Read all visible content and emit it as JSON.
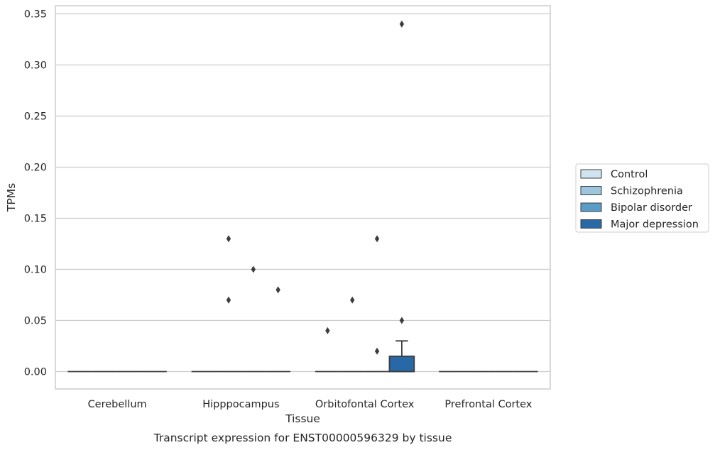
{
  "chart_data": {
    "type": "box",
    "title": "",
    "caption": "Transcript expression for ENST00000596329 by tissue",
    "xlabel": "Tissue",
    "ylabel": "TPMs",
    "ylim": [
      -0.017,
      0.358
    ],
    "yticks": [
      "0.00",
      "0.05",
      "0.10",
      "0.15",
      "0.20",
      "0.25",
      "0.30",
      "0.35"
    ],
    "categories": [
      "Cerebellum",
      "Hipppocampus",
      "Orbitofontal Cortex",
      "Prefrontal Cortex"
    ],
    "grid": true,
    "legend_position": "right",
    "series": [
      {
        "name": "Control",
        "color": "#d1e2f0",
        "boxes": [
          {
            "category": "Cerebellum",
            "q1": 0,
            "median": 0,
            "q3": 0,
            "whisker_low": 0,
            "whisker_high": 0,
            "outliers": []
          },
          {
            "category": "Hipppocampus",
            "q1": 0,
            "median": 0,
            "q3": 0,
            "whisker_low": 0,
            "whisker_high": 0,
            "outliers": []
          },
          {
            "category": "Orbitofontal Cortex",
            "q1": 0,
            "median": 0,
            "q3": 0,
            "whisker_low": 0,
            "whisker_high": 0,
            "outliers": [
              0.04
            ]
          },
          {
            "category": "Prefrontal Cortex",
            "q1": 0,
            "median": 0,
            "q3": 0,
            "whisker_low": 0,
            "whisker_high": 0,
            "outliers": []
          }
        ]
      },
      {
        "name": "Schizophrenia",
        "color": "#9dc5dd",
        "boxes": [
          {
            "category": "Cerebellum",
            "q1": 0,
            "median": 0,
            "q3": 0,
            "whisker_low": 0,
            "whisker_high": 0,
            "outliers": []
          },
          {
            "category": "Hipppocampus",
            "q1": 0,
            "median": 0,
            "q3": 0,
            "whisker_low": 0,
            "whisker_high": 0,
            "outliers": [
              0.13,
              0.07
            ]
          },
          {
            "category": "Orbitofontal Cortex",
            "q1": 0,
            "median": 0,
            "q3": 0,
            "whisker_low": 0,
            "whisker_high": 0,
            "outliers": [
              0.07
            ]
          },
          {
            "category": "Prefrontal Cortex",
            "q1": 0,
            "median": 0,
            "q3": 0,
            "whisker_low": 0,
            "whisker_high": 0,
            "outliers": []
          }
        ]
      },
      {
        "name": "Bipolar disorder",
        "color": "#5a9cc8",
        "boxes": [
          {
            "category": "Cerebellum",
            "q1": 0,
            "median": 0,
            "q3": 0,
            "whisker_low": 0,
            "whisker_high": 0,
            "outliers": []
          },
          {
            "category": "Hipppocampus",
            "q1": 0,
            "median": 0,
            "q3": 0,
            "whisker_low": 0,
            "whisker_high": 0,
            "outliers": [
              0.1
            ]
          },
          {
            "category": "Orbitofontal Cortex",
            "q1": 0,
            "median": 0,
            "q3": 0,
            "whisker_low": 0,
            "whisker_high": 0,
            "outliers": [
              0.13,
              0.02
            ]
          },
          {
            "category": "Prefrontal Cortex",
            "q1": 0,
            "median": 0,
            "q3": 0,
            "whisker_low": 0,
            "whisker_high": 0,
            "outliers": []
          }
        ]
      },
      {
        "name": "Major depression",
        "color": "#2868a7",
        "boxes": [
          {
            "category": "Cerebellum",
            "q1": 0,
            "median": 0,
            "q3": 0,
            "whisker_low": 0,
            "whisker_high": 0,
            "outliers": []
          },
          {
            "category": "Hipppocampus",
            "q1": 0,
            "median": 0,
            "q3": 0,
            "whisker_low": 0,
            "whisker_high": 0,
            "outliers": [
              0.08
            ]
          },
          {
            "category": "Orbitofontal Cortex",
            "q1": 0,
            "median": 0,
            "q3": 0.015,
            "whisker_low": 0,
            "whisker_high": 0.03,
            "outliers": [
              0.34,
              0.05
            ]
          },
          {
            "category": "Prefrontal Cortex",
            "q1": 0,
            "median": 0,
            "q3": 0,
            "whisker_low": 0,
            "whisker_high": 0,
            "outliers": []
          }
        ]
      }
    ]
  }
}
